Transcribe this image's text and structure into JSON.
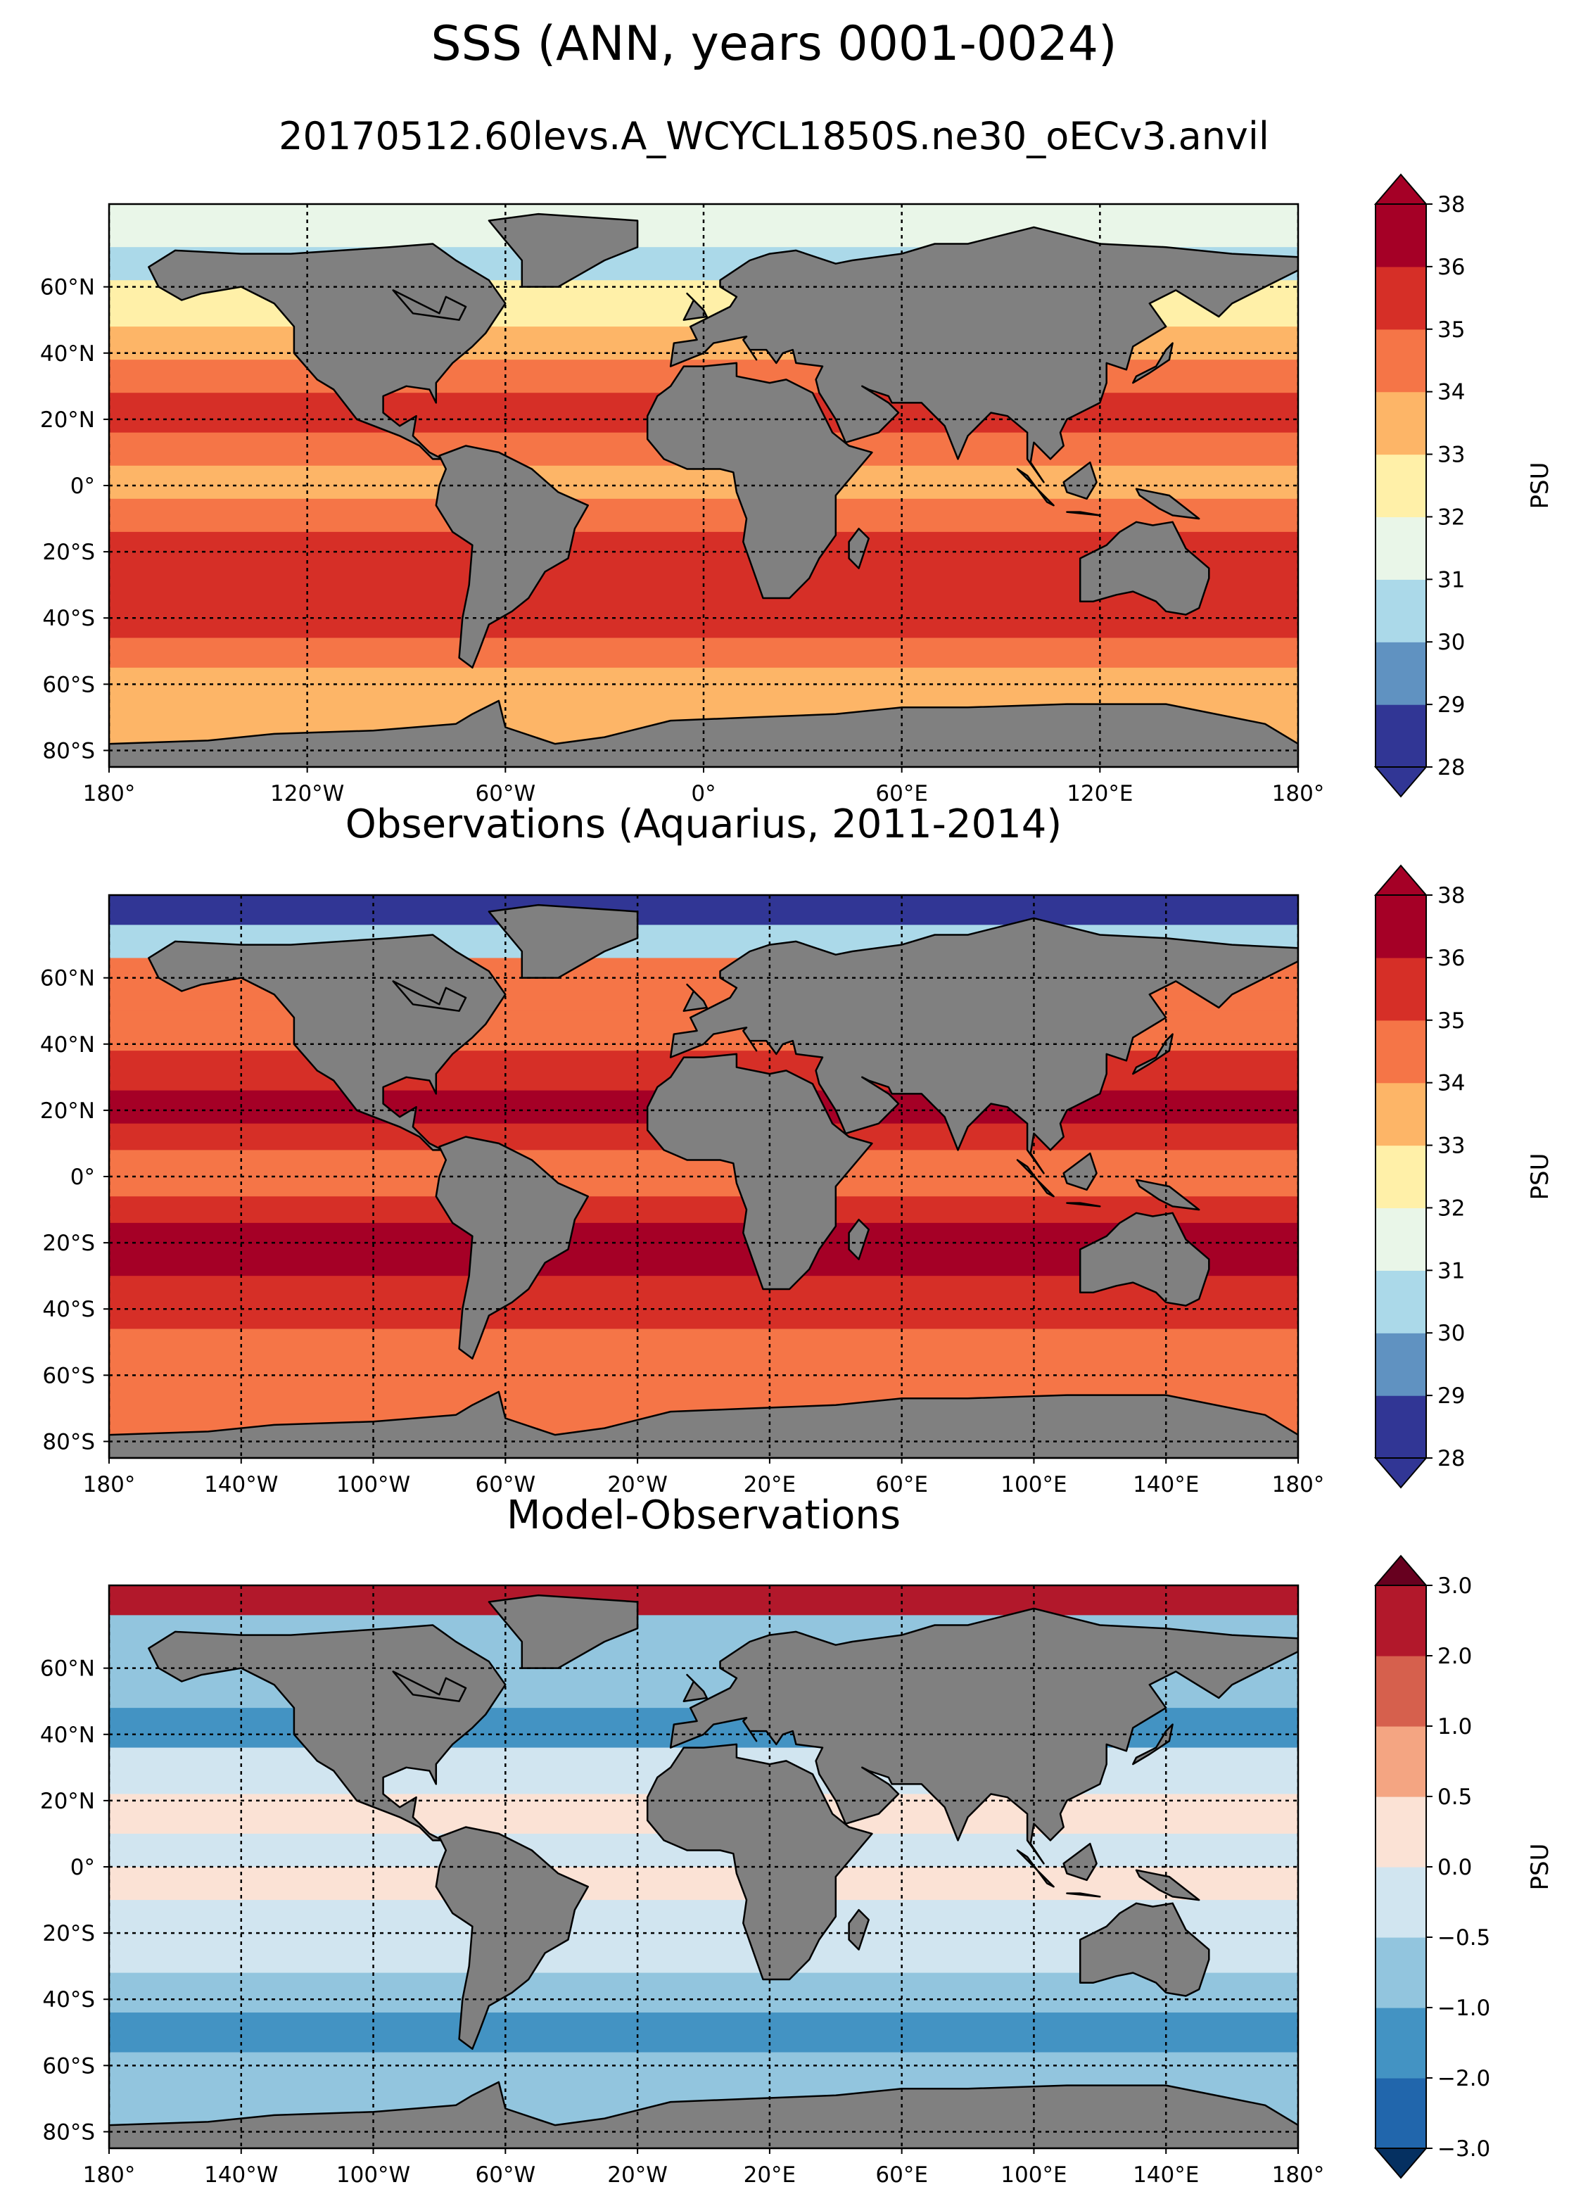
{
  "figure": {
    "title": "SSS (ANN, years 0001-0024)",
    "subtitle": "20170512.60levs.A_WCYCL1850S.ne30_oECv3.anvil"
  },
  "colors": {
    "land": "#808080",
    "nodata": "#ffffff",
    "grid": "#000000"
  },
  "chart_data": [
    {
      "type": "heatmap",
      "panel": "model",
      "title": "",
      "xlabel": "",
      "ylabel": "",
      "xlim": [
        -180,
        180
      ],
      "ylim": [
        -85,
        85
      ],
      "x_ticks": [
        -180,
        -120,
        -60,
        0,
        60,
        120,
        180
      ],
      "x_tick_labels": [
        "180°",
        "120°W",
        "60°W",
        "0°",
        "60°E",
        "120°E",
        "180°"
      ],
      "y_ticks": [
        60,
        40,
        20,
        0,
        -20,
        -40,
        -60,
        -80
      ],
      "y_tick_labels": [
        "60°N",
        "40°N",
        "20°N",
        "0°",
        "20°S",
        "40°S",
        "60°S",
        "80°S"
      ],
      "grid": true,
      "colorbar": {
        "label": "PSU",
        "levels": [
          28,
          29,
          30,
          31,
          32,
          33,
          34,
          35,
          36,
          38
        ],
        "tick_labels": [
          "28",
          "29",
          "30",
          "31",
          "32",
          "33",
          "34",
          "35",
          "36",
          "38"
        ],
        "colors": [
          "#313695",
          "#6092c1",
          "#abd9e9",
          "#e9f6e8",
          "#fff0a8",
          "#fdb567",
          "#f57547",
          "#d62f27",
          "#a50026"
        ],
        "under_color": "#313695",
        "over_color": "#a50026",
        "extend": "both"
      }
    },
    {
      "type": "heatmap",
      "panel": "observations",
      "title": "Observations (Aquarius, 2011-2014)",
      "xlabel": "",
      "ylabel": "",
      "xlim": [
        -180,
        180
      ],
      "ylim": [
        -85,
        85
      ],
      "x_ticks": [
        -180,
        -140,
        -100,
        -60,
        -20,
        20,
        60,
        100,
        140,
        180
      ],
      "x_tick_labels": [
        "180°",
        "140°W",
        "100°W",
        "60°W",
        "20°W",
        "20°E",
        "60°E",
        "100°E",
        "140°E",
        "180°"
      ],
      "y_ticks": [
        60,
        40,
        20,
        0,
        -20,
        -40,
        -60,
        -80
      ],
      "y_tick_labels": [
        "60°N",
        "40°N",
        "20°N",
        "0°",
        "20°S",
        "40°S",
        "60°S",
        "80°S"
      ],
      "grid": true,
      "colorbar": {
        "label": "PSU",
        "levels": [
          28,
          29,
          30,
          31,
          32,
          33,
          34,
          35,
          36,
          38
        ],
        "tick_labels": [
          "28",
          "29",
          "30",
          "31",
          "32",
          "33",
          "34",
          "35",
          "36",
          "38"
        ],
        "colors": [
          "#313695",
          "#6092c1",
          "#abd9e9",
          "#e9f6e8",
          "#fff0a8",
          "#fdb567",
          "#f57547",
          "#d62f27",
          "#a50026"
        ],
        "under_color": "#313695",
        "over_color": "#a50026",
        "extend": "both"
      }
    },
    {
      "type": "heatmap",
      "panel": "difference",
      "title": "Model-Observations",
      "xlabel": "",
      "ylabel": "",
      "xlim": [
        -180,
        180
      ],
      "ylim": [
        -85,
        85
      ],
      "x_ticks": [
        -180,
        -140,
        -100,
        -60,
        -20,
        20,
        60,
        100,
        140,
        180
      ],
      "x_tick_labels": [
        "180°",
        "140°W",
        "100°W",
        "60°W",
        "20°W",
        "20°E",
        "60°E",
        "100°E",
        "140°E",
        "180°"
      ],
      "y_ticks": [
        60,
        40,
        20,
        0,
        -20,
        -40,
        -60,
        -80
      ],
      "y_tick_labels": [
        "60°N",
        "40°N",
        "20°N",
        "0°",
        "20°S",
        "40°S",
        "60°S",
        "80°S"
      ],
      "grid": true,
      "colorbar": {
        "label": "PSU",
        "levels": [
          -3.0,
          -2.0,
          -1.0,
          -0.5,
          0.0,
          0.5,
          1.0,
          2.0,
          3.0
        ],
        "tick_labels": [
          "−3.0",
          "−2.0",
          "−1.0",
          "−0.5",
          "0.0",
          "0.5",
          "1.0",
          "2.0",
          "3.0"
        ],
        "colors": [
          "#2166ac",
          "#4393c3",
          "#92c5de",
          "#d1e5f0",
          "#fbe2d5",
          "#f4a582",
          "#d6604d",
          "#b2182b"
        ],
        "under_color": "#053061",
        "over_color": "#67001f",
        "extend": "both"
      }
    }
  ]
}
